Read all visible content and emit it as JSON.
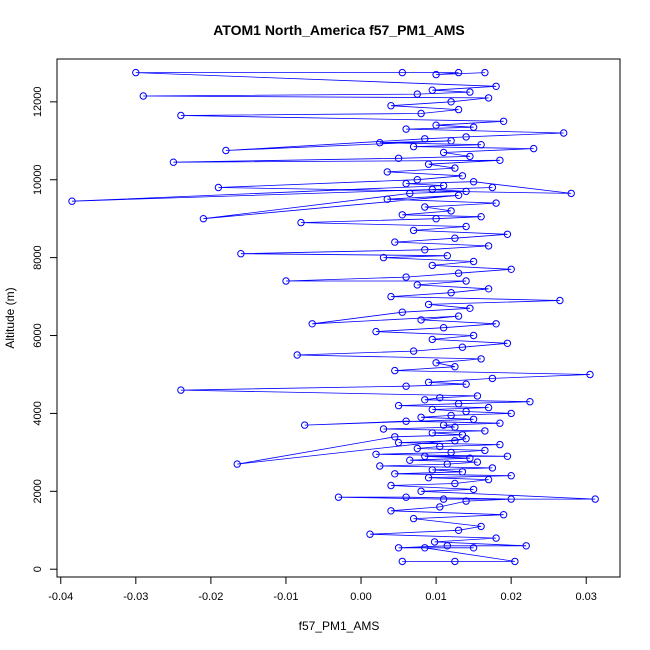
{
  "chart_data": {
    "type": "scatter",
    "title": "ATOM1 North_America f57_PM1_AMS",
    "xlabel": "f57_PM1_AMS",
    "ylabel": "Altitude (m)",
    "xlim": [
      -0.0405,
      0.0345
    ],
    "ylim": [
      -200,
      13100
    ],
    "xticks": [
      -0.04,
      -0.03,
      -0.02,
      -0.01,
      0.0,
      0.01,
      0.02,
      0.03
    ],
    "xtick_labels": [
      "-0.04",
      "-0.03",
      "-0.02",
      "-0.01",
      "0.00",
      "0.01",
      "0.02",
      "0.03"
    ],
    "yticks": [
      0,
      2000,
      4000,
      6000,
      8000,
      10000,
      12000
    ],
    "ytick_labels": [
      "0",
      "2000",
      "4000",
      "6000",
      "8000",
      "10000",
      "12000"
    ],
    "grid": false,
    "legend": "none",
    "marker": "open-circle",
    "connected": true,
    "color": "#0000ff",
    "series": [
      {
        "x": [
          0.0055,
          0.0125,
          0.0205,
          0.0085,
          0.015,
          0.005,
          0.0115,
          0.022,
          0.0098,
          0.018,
          0.0012,
          0.013,
          0.016,
          0.007,
          0.019,
          0.004,
          0.0105,
          0.014,
          0.02,
          0.006,
          -0.003,
          0.011,
          0.0312,
          0.008,
          0.015,
          0.004,
          0.0125,
          0.017,
          0.009,
          0.02,
          0.0045,
          0.0135,
          0.0095,
          0.0175,
          0.0025,
          0.0115,
          0.0155,
          0.0065,
          0.0145,
          0.0085,
          0.0195,
          0.002,
          0.012,
          0.0165,
          0.0075,
          0.0105,
          0.0185,
          0.005,
          0.0125,
          0.014,
          -0.0165,
          0.0045,
          0.0135,
          0.0095,
          0.0165,
          0.003,
          0.0125,
          0.011,
          0.0185,
          0.006,
          -0.0075,
          0.015,
          0.008,
          0.012,
          0.02,
          0.014,
          0.0095,
          0.017,
          0.005,
          0.013,
          0.0225,
          0.0085,
          0.0105,
          0.0155,
          -0.024,
          0.006,
          0.014,
          0.009,
          0.0175,
          0.0305,
          0.0045,
          0.0125,
          0.01,
          0.016,
          -0.0085,
          0.007,
          0.0135,
          0.0195,
          0.0095,
          0.015,
          0.002,
          0.011,
          0.018,
          0.008,
          0.013,
          -0.0065,
          0.0055,
          0.0145,
          0.009,
          0.0265,
          0.004,
          0.012,
          0.017,
          0.0075,
          0.014,
          -0.01,
          0.006,
          0.013,
          0.02,
          0.0095,
          0.015,
          0.003,
          0.0115,
          -0.016,
          0.0085,
          0.017,
          0.0045,
          0.0125,
          0.0195,
          0.007,
          0.014,
          -0.008,
          0.01,
          0.016,
          0.0055,
          0.012,
          0.0085,
          0.018,
          0.0035,
          0.013,
          -0.021,
          0.0065,
          0.014,
          0.0095,
          0.0175,
          -0.0385,
          0.011,
          0.006,
          0.015,
          0.028,
          -0.019,
          0.0075,
          0.0135,
          0.0035,
          0.0125,
          0.009,
          0.0185,
          -0.025,
          0.005,
          0.0145,
          0.011,
          0.023,
          0.007,
          0.016,
          0.0025,
          0.012,
          -0.018,
          0.0085,
          0.014,
          0.027,
          0.006,
          0.015,
          0.01,
          0.019,
          -0.024,
          0.008,
          0.013,
          0.004,
          0.012,
          0.017,
          -0.029,
          0.0075,
          0.0145,
          0.0095,
          0.018,
          -0.03,
          0.0055,
          0.013,
          0.01,
          0.0165
        ],
        "y": [
          200,
          200,
          200,
          550,
          550,
          550,
          600,
          600,
          700,
          800,
          900,
          1000,
          1100,
          1300,
          1400,
          1500,
          1600,
          1750,
          1800,
          1850,
          1850,
          1800,
          1800,
          2000,
          2050,
          2150,
          2200,
          2300,
          2350,
          2400,
          2450,
          2500,
          2550,
          2600,
          2650,
          2700,
          2750,
          2800,
          2850,
          2900,
          2900,
          2950,
          3000,
          3050,
          3100,
          3150,
          3200,
          3250,
          3300,
          3350,
          2700,
          3400,
          3450,
          3500,
          3550,
          3600,
          3650,
          3700,
          3750,
          3800,
          3700,
          3850,
          3900,
          3950,
          4000,
          4050,
          4100,
          4150,
          4200,
          4250,
          4300,
          4350,
          4400,
          4450,
          4600,
          4700,
          4750,
          4800,
          4900,
          5000,
          5100,
          5200,
          5300,
          5400,
          5500,
          5600,
          5700,
          5800,
          5900,
          6000,
          6100,
          6200,
          6300,
          6400,
          6500,
          6300,
          6600,
          6700,
          6800,
          6900,
          7000,
          7100,
          7200,
          7300,
          7400,
          7400,
          7500,
          7600,
          7700,
          7800,
          7900,
          8000,
          8050,
          8100,
          8200,
          8300,
          8400,
          8500,
          8600,
          8700,
          8800,
          8900,
          9000,
          9050,
          9100,
          9200,
          9300,
          9400,
          9500,
          9600,
          9000,
          9650,
          9700,
          9750,
          9800,
          9450,
          9850,
          9900,
          9950,
          9650,
          9800,
          10000,
          10100,
          10200,
          10300,
          10400,
          10500,
          10450,
          10550,
          10600,
          10700,
          10800,
          10850,
          10900,
          10950,
          11000,
          10750,
          11050,
          11100,
          11200,
          11300,
          11350,
          11400,
          11500,
          11650,
          11700,
          11800,
          11900,
          12000,
          12100,
          12150,
          12200,
          12250,
          12300,
          12400,
          12750,
          12750,
          12750,
          12700,
          12750
        ]
      }
    ]
  }
}
